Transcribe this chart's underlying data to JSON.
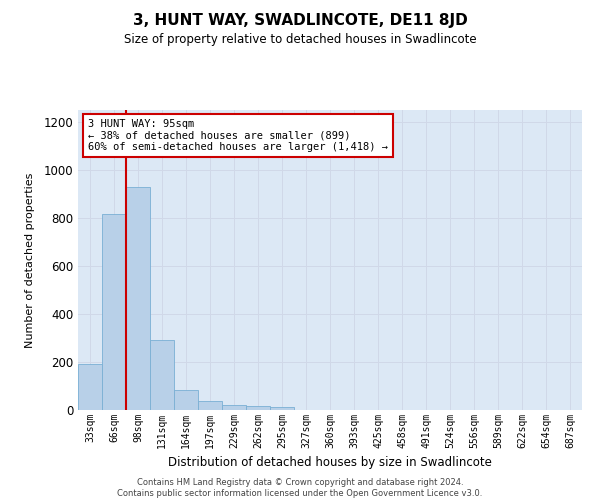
{
  "title": "3, HUNT WAY, SWADLINCOTE, DE11 8JD",
  "subtitle": "Size of property relative to detached houses in Swadlincote",
  "xlabel": "Distribution of detached houses by size in Swadlincote",
  "ylabel": "Number of detached properties",
  "categories": [
    "33sqm",
    "66sqm",
    "98sqm",
    "131sqm",
    "164sqm",
    "197sqm",
    "229sqm",
    "262sqm",
    "295sqm",
    "327sqm",
    "360sqm",
    "393sqm",
    "425sqm",
    "458sqm",
    "491sqm",
    "524sqm",
    "556sqm",
    "589sqm",
    "622sqm",
    "654sqm",
    "687sqm"
  ],
  "values": [
    190,
    815,
    930,
    290,
    85,
    37,
    22,
    17,
    12,
    0,
    0,
    0,
    0,
    0,
    0,
    0,
    0,
    0,
    0,
    0,
    0
  ],
  "bar_color": "#b8d0e8",
  "bar_edge_color": "#7aafd4",
  "grid_color": "#d0d8e8",
  "background_color": "#ffffff",
  "plot_bg_color": "#dce8f5",
  "annotation_text": "3 HUNT WAY: 95sqm\n← 38% of detached houses are smaller (899)\n60% of semi-detached houses are larger (1,418) →",
  "annotation_box_color": "#ffffff",
  "annotation_box_edge": "#cc0000",
  "vline_color": "#cc0000",
  "ylim": [
    0,
    1250
  ],
  "yticks": [
    0,
    200,
    400,
    600,
    800,
    1000,
    1200
  ],
  "footer_line1": "Contains HM Land Registry data © Crown copyright and database right 2024.",
  "footer_line2": "Contains public sector information licensed under the Open Government Licence v3.0."
}
